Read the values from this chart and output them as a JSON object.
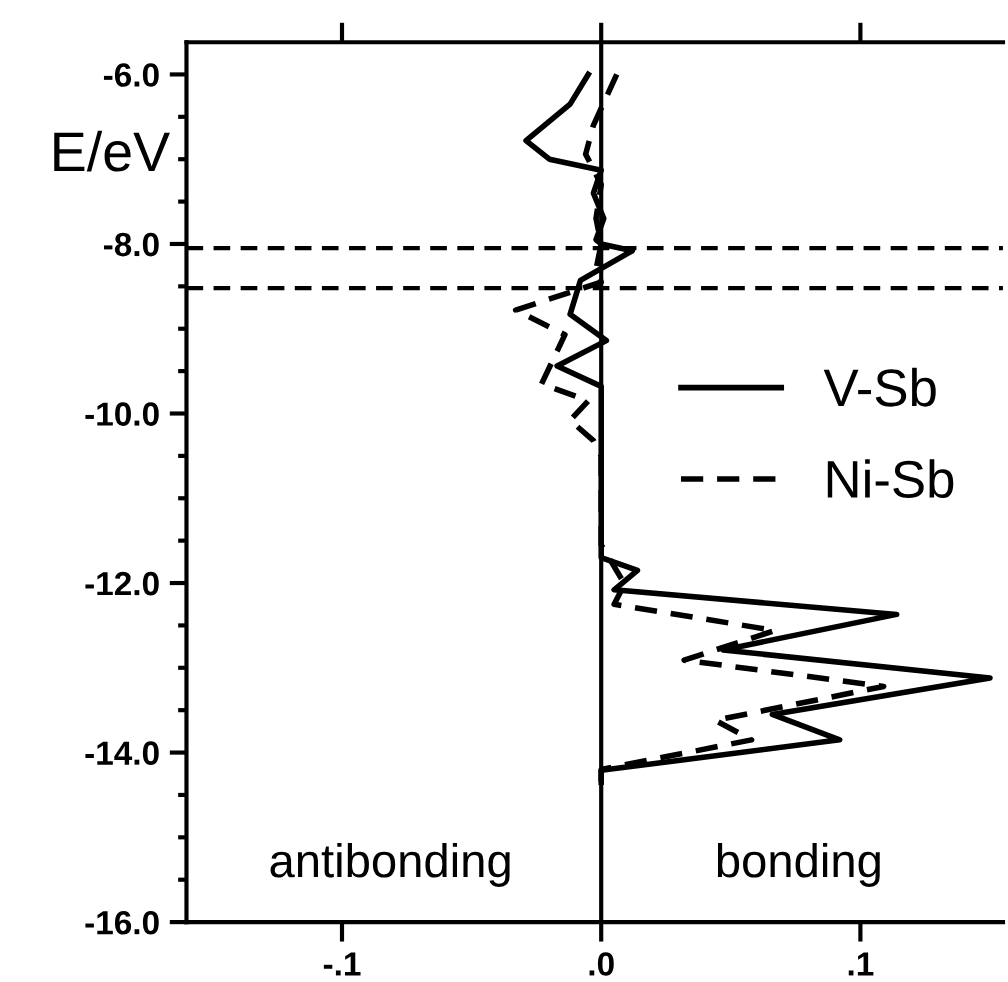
{
  "chart_data": {
    "type": "line",
    "ylabel": "E/eV",
    "xlim": [
      -0.16,
      0.155
    ],
    "ylim": [
      -16.0,
      -5.62
    ],
    "xticks": [
      {
        "value": -0.1,
        "label": "-.1"
      },
      {
        "value": 0,
        "label": ".0"
      },
      {
        "value": 0.1,
        "label": ".1"
      }
    ],
    "yticks": [
      {
        "value": -6,
        "label": "-6.0"
      },
      {
        "value": -6.5,
        "label": null
      },
      {
        "value": -7,
        "label": null
      },
      {
        "value": -7.5,
        "label": null
      },
      {
        "value": -8,
        "label": "-8.0"
      },
      {
        "value": -8.5,
        "label": null
      },
      {
        "value": -9,
        "label": null
      },
      {
        "value": -9.5,
        "label": null
      },
      {
        "value": -10,
        "label": "-10.0"
      },
      {
        "value": -10.5,
        "label": null
      },
      {
        "value": -11,
        "label": null
      },
      {
        "value": -11.5,
        "label": null
      },
      {
        "value": -12,
        "label": "-12.0"
      },
      {
        "value": -12.5,
        "label": null
      },
      {
        "value": -13,
        "label": null
      },
      {
        "value": -13.5,
        "label": null
      },
      {
        "value": -14,
        "label": "-14.0"
      },
      {
        "value": -14.5,
        "label": null
      },
      {
        "value": -15,
        "label": null
      },
      {
        "value": -15.5,
        "label": null
      },
      {
        "value": -16,
        "label": "-16.0"
      }
    ],
    "series": [
      {
        "name": "V-Sb",
        "color": "#000000",
        "line_style": "solid",
        "x": [
          -0.005,
          -0.012,
          -0.029,
          -0.02,
          0.0,
          -0.003,
          0.001,
          -0.002,
          0.0,
          0.012,
          -0.008,
          -0.012,
          0.002,
          -0.017,
          0.0,
          0.0,
          0.0,
          0.014,
          0.005,
          0.114,
          0.047,
          0.15,
          0.066,
          0.092,
          0.0,
          0.0
        ],
        "values": [
          -6.0,
          -6.35,
          -6.78,
          -7.0,
          -7.13,
          -7.4,
          -7.7,
          -7.95,
          -8.0,
          -8.08,
          -8.43,
          -8.83,
          -9.14,
          -9.44,
          -9.68,
          -11.61,
          -11.7,
          -11.85,
          -12.08,
          -12.37,
          -12.79,
          -13.12,
          -13.55,
          -13.85,
          -14.21,
          -14.35
        ]
      },
      {
        "name": "Ni-Sb",
        "color": "#000000",
        "line_style": "dashed",
        "x": [
          0.006,
          0.003,
          -0.003,
          -0.006,
          0.0,
          -0.002,
          0.0,
          -0.002,
          0.0,
          -0.033,
          -0.014,
          -0.023,
          -0.005,
          -0.012,
          -0.003,
          0.0,
          0.0,
          0.009,
          0.005,
          0.067,
          0.032,
          0.109,
          0.044,
          0.058,
          0.0,
          0.0
        ],
        "values": [
          -6.0,
          -6.2,
          -6.6,
          -6.94,
          -7.3,
          -7.7,
          -8.0,
          -8.3,
          -8.45,
          -8.78,
          -9.07,
          -9.65,
          -9.85,
          -10.08,
          -10.32,
          -10.5,
          -11.55,
          -12.01,
          -12.25,
          -12.56,
          -12.91,
          -13.22,
          -13.62,
          -13.85,
          -14.2,
          -14.35
        ]
      }
    ],
    "ref_lines": [
      {
        "axis": "x",
        "value": 0,
        "line_style": "solid"
      },
      {
        "axis": "y",
        "value": -8.05,
        "line_style": "dashed"
      },
      {
        "axis": "y",
        "value": -8.52,
        "line_style": "dashed"
      }
    ],
    "annotations": [
      "antibonding",
      "bonding"
    ],
    "legend": "right",
    "grid": false
  }
}
